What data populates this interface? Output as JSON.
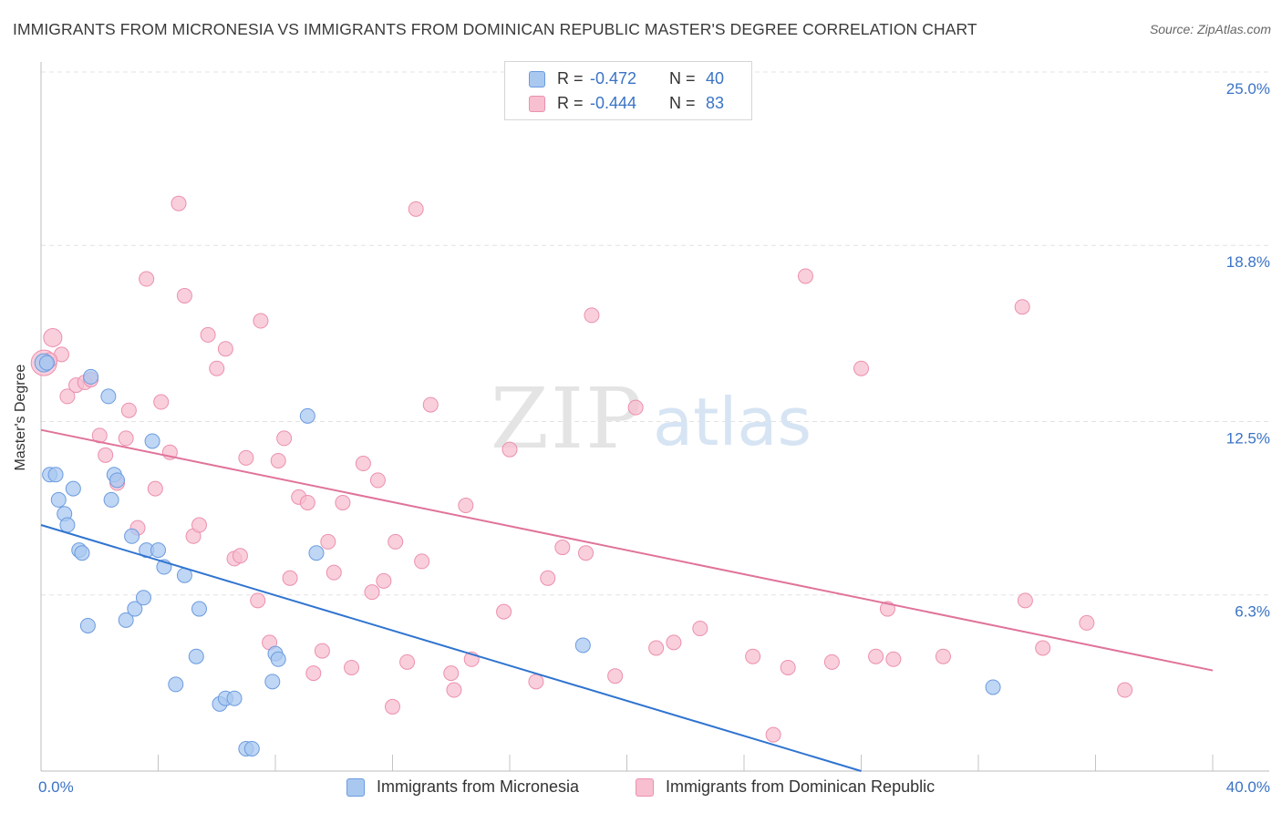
{
  "title": "IMMIGRANTS FROM MICRONESIA VS IMMIGRANTS FROM DOMINICAN REPUBLIC MASTER'S DEGREE CORRELATION CHART",
  "source": "Source: ZipAtlas.com",
  "watermark": {
    "zip": "ZIP",
    "atlas": "atlas"
  },
  "legend": {
    "r_label": "R =",
    "n_label": "N =",
    "series": [
      {
        "r": "-0.472",
        "n": "40"
      },
      {
        "r": "-0.444",
        "n": "83"
      }
    ]
  },
  "colors": {
    "blue_fill": "#a9c8f0",
    "blue_stroke": "#6b9be0",
    "blue_line": "#2f74d0",
    "pink_fill": "#f7bfd0",
    "pink_stroke": "#ec90ad",
    "pink_line": "#e0739a",
    "axis_label": "#3a73c5",
    "grid": "#e3e3e3"
  },
  "chart_data": {
    "type": "scatter",
    "title": "IMMIGRANTS FROM MICRONESIA VS IMMIGRANTS FROM DOMINICAN REPUBLIC MASTER'S DEGREE CORRELATION CHART",
    "xlabel": "",
    "ylabel": "Master's Degree",
    "xlim": [
      0,
      40
    ],
    "ylim": [
      0,
      25
    ],
    "x_tick_labels": [
      {
        "value": 0,
        "label": "0.0%"
      },
      {
        "value": 40,
        "label": "40.0%"
      }
    ],
    "x_minor_ticks": [
      4,
      8,
      12,
      16,
      20,
      24,
      28,
      32,
      36,
      40
    ],
    "y_ticks": [
      {
        "value": 6.3,
        "label": "6.3%"
      },
      {
        "value": 12.5,
        "label": "12.5%"
      },
      {
        "value": 18.8,
        "label": "18.8%"
      },
      {
        "value": 25.0,
        "label": "25.0%"
      }
    ],
    "grid": true,
    "legend_position": "top-center",
    "series": [
      {
        "name": "Immigrants from Micronesia",
        "color": "#a9c8f0",
        "trend": {
          "x0": 0,
          "y0": 8.8,
          "x1": 28,
          "y1": 0
        },
        "points": [
          {
            "x": 0.1,
            "y": 14.6,
            "r": 10
          },
          {
            "x": 0.3,
            "y": 10.6
          },
          {
            "x": 0.5,
            "y": 10.6
          },
          {
            "x": 0.6,
            "y": 9.7
          },
          {
            "x": 0.8,
            "y": 9.2
          },
          {
            "x": 0.9,
            "y": 8.8
          },
          {
            "x": 1.1,
            "y": 10.1
          },
          {
            "x": 1.3,
            "y": 7.9
          },
          {
            "x": 1.4,
            "y": 7.8
          },
          {
            "x": 1.6,
            "y": 5.2
          },
          {
            "x": 1.7,
            "y": 14.1
          },
          {
            "x": 2.3,
            "y": 13.4
          },
          {
            "x": 2.4,
            "y": 9.7
          },
          {
            "x": 2.5,
            "y": 10.6
          },
          {
            "x": 2.6,
            "y": 10.4
          },
          {
            "x": 2.9,
            "y": 5.4
          },
          {
            "x": 3.1,
            "y": 8.4
          },
          {
            "x": 3.2,
            "y": 5.8
          },
          {
            "x": 3.5,
            "y": 6.2
          },
          {
            "x": 3.6,
            "y": 7.9
          },
          {
            "x": 3.8,
            "y": 11.8
          },
          {
            "x": 4.0,
            "y": 7.9
          },
          {
            "x": 4.2,
            "y": 7.3
          },
          {
            "x": 4.6,
            "y": 3.1
          },
          {
            "x": 4.9,
            "y": 7.0
          },
          {
            "x": 5.3,
            "y": 4.1
          },
          {
            "x": 5.4,
            "y": 5.8
          },
          {
            "x": 6.1,
            "y": 2.4
          },
          {
            "x": 6.3,
            "y": 2.6
          },
          {
            "x": 6.6,
            "y": 2.6
          },
          {
            "x": 7.0,
            "y": 0.8
          },
          {
            "x": 7.2,
            "y": 0.8
          },
          {
            "x": 7.9,
            "y": 3.2
          },
          {
            "x": 8.0,
            "y": 4.2
          },
          {
            "x": 8.1,
            "y": 4.0
          },
          {
            "x": 9.1,
            "y": 12.7
          },
          {
            "x": 9.4,
            "y": 7.8
          },
          {
            "x": 18.5,
            "y": 4.5
          },
          {
            "x": 32.5,
            "y": 3.0
          },
          {
            "x": 0.2,
            "y": 14.6
          }
        ]
      },
      {
        "name": "Immigrants from Dominican Republic",
        "color": "#f7bfd0",
        "trend": {
          "x0": 0,
          "y0": 12.2,
          "x1": 40,
          "y1": 3.6
        },
        "points": [
          {
            "x": 0.1,
            "y": 14.6,
            "r": 14
          },
          {
            "x": 0.4,
            "y": 15.5,
            "r": 10
          },
          {
            "x": 0.7,
            "y": 14.9
          },
          {
            "x": 0.9,
            "y": 13.4
          },
          {
            "x": 1.2,
            "y": 13.8
          },
          {
            "x": 1.5,
            "y": 13.9
          },
          {
            "x": 1.7,
            "y": 14.0
          },
          {
            "x": 2.0,
            "y": 12.0
          },
          {
            "x": 2.2,
            "y": 11.3
          },
          {
            "x": 2.6,
            "y": 10.3
          },
          {
            "x": 2.9,
            "y": 11.9
          },
          {
            "x": 3.0,
            "y": 12.9
          },
          {
            "x": 3.3,
            "y": 8.7
          },
          {
            "x": 3.6,
            "y": 17.6
          },
          {
            "x": 3.9,
            "y": 10.1
          },
          {
            "x": 4.1,
            "y": 13.2
          },
          {
            "x": 4.4,
            "y": 11.4
          },
          {
            "x": 4.7,
            "y": 20.3
          },
          {
            "x": 4.9,
            "y": 17.0
          },
          {
            "x": 5.2,
            "y": 8.4
          },
          {
            "x": 5.4,
            "y": 8.8
          },
          {
            "x": 5.7,
            "y": 15.6
          },
          {
            "x": 6.0,
            "y": 14.4
          },
          {
            "x": 6.3,
            "y": 15.1
          },
          {
            "x": 6.6,
            "y": 7.6
          },
          {
            "x": 6.8,
            "y": 7.7
          },
          {
            "x": 7.0,
            "y": 11.2
          },
          {
            "x": 7.4,
            "y": 6.1
          },
          {
            "x": 7.5,
            "y": 16.1
          },
          {
            "x": 7.8,
            "y": 4.6
          },
          {
            "x": 8.1,
            "y": 11.1
          },
          {
            "x": 8.3,
            "y": 11.9
          },
          {
            "x": 8.5,
            "y": 6.9
          },
          {
            "x": 8.8,
            "y": 9.8
          },
          {
            "x": 9.1,
            "y": 9.6
          },
          {
            "x": 9.3,
            "y": 3.5
          },
          {
            "x": 9.6,
            "y": 4.3
          },
          {
            "x": 9.8,
            "y": 8.2
          },
          {
            "x": 10.0,
            "y": 7.1
          },
          {
            "x": 10.3,
            "y": 9.6
          },
          {
            "x": 10.6,
            "y": 3.7
          },
          {
            "x": 11.0,
            "y": 11.0
          },
          {
            "x": 11.3,
            "y": 6.4
          },
          {
            "x": 11.5,
            "y": 10.4
          },
          {
            "x": 11.7,
            "y": 6.8
          },
          {
            "x": 12.0,
            "y": 2.3
          },
          {
            "x": 12.1,
            "y": 8.2
          },
          {
            "x": 12.5,
            "y": 3.9
          },
          {
            "x": 12.8,
            "y": 20.1
          },
          {
            "x": 13.0,
            "y": 7.5
          },
          {
            "x": 13.3,
            "y": 13.1
          },
          {
            "x": 14.0,
            "y": 3.5
          },
          {
            "x": 14.1,
            "y": 2.9
          },
          {
            "x": 14.5,
            "y": 9.5
          },
          {
            "x": 14.7,
            "y": 4.0
          },
          {
            "x": 15.8,
            "y": 5.7
          },
          {
            "x": 16.0,
            "y": 11.5
          },
          {
            "x": 16.9,
            "y": 3.2
          },
          {
            "x": 17.3,
            "y": 6.9
          },
          {
            "x": 17.8,
            "y": 8.0
          },
          {
            "x": 18.6,
            "y": 7.8
          },
          {
            "x": 18.8,
            "y": 16.3
          },
          {
            "x": 19.6,
            "y": 3.4
          },
          {
            "x": 20.3,
            "y": 13.0
          },
          {
            "x": 21.0,
            "y": 4.4
          },
          {
            "x": 21.6,
            "y": 4.6
          },
          {
            "x": 22.5,
            "y": 5.1
          },
          {
            "x": 24.3,
            "y": 4.1
          },
          {
            "x": 25.0,
            "y": 1.3
          },
          {
            "x": 25.5,
            "y": 3.7
          },
          {
            "x": 26.1,
            "y": 17.7
          },
          {
            "x": 27.0,
            "y": 3.9
          },
          {
            "x": 28.0,
            "y": 14.4
          },
          {
            "x": 28.5,
            "y": 4.1
          },
          {
            "x": 28.9,
            "y": 5.8
          },
          {
            "x": 29.1,
            "y": 4.0
          },
          {
            "x": 30.8,
            "y": 4.1
          },
          {
            "x": 33.5,
            "y": 16.6
          },
          {
            "x": 33.6,
            "y": 6.1
          },
          {
            "x": 34.2,
            "y": 4.4
          },
          {
            "x": 35.7,
            "y": 5.3
          },
          {
            "x": 37.0,
            "y": 2.9
          },
          {
            "x": 0.3,
            "y": 14.7
          }
        ]
      }
    ]
  },
  "bottom_legend": [
    {
      "label": "Immigrants from Micronesia"
    },
    {
      "label": "Immigrants from Dominican Republic"
    }
  ]
}
